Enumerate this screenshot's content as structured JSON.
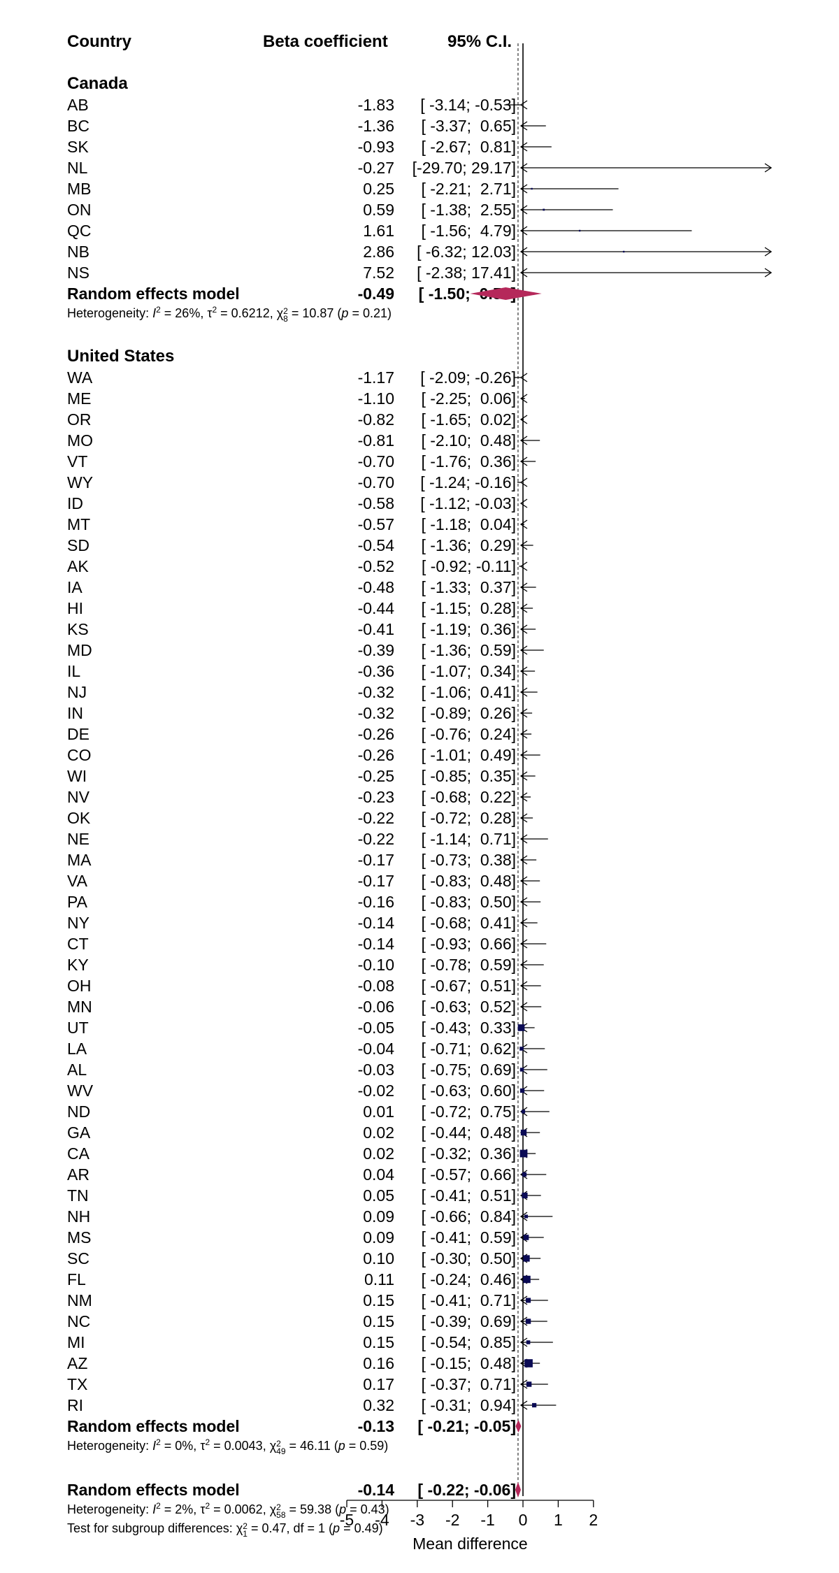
{
  "headers": {
    "country": "Country",
    "beta": "Beta coefficient",
    "ci": "95% C.I."
  },
  "colors": {
    "point": "#0b0b55",
    "diamond": "#b5285a",
    "line": "#000000"
  },
  "groups": [
    {
      "name": "Canada",
      "rows": [
        {
          "label": "AB",
          "est": "-1.83",
          "ci": "[ -3.14; -0.53]"
        },
        {
          "label": "BC",
          "est": "-1.36",
          "ci": "[ -3.37;  0.65]"
        },
        {
          "label": "SK",
          "est": "-0.93",
          "ci": "[ -2.67;  0.81]"
        },
        {
          "label": "NL",
          "est": "-0.27",
          "ci": "[-29.70; 29.17]"
        },
        {
          "label": "MB",
          "est": "0.25",
          "ci": "[ -2.21;  2.71]"
        },
        {
          "label": "ON",
          "est": "0.59",
          "ci": "[ -1.38;  2.55]"
        },
        {
          "label": "QC",
          "est": "1.61",
          "ci": "[ -1.56;  4.79]"
        },
        {
          "label": "NB",
          "est": "2.86",
          "ci": "[ -6.32; 12.03]"
        },
        {
          "label": "NS",
          "est": "7.52",
          "ci": "[ -2.38; 17.41]"
        }
      ],
      "model": {
        "label": "Random effects model",
        "est": "-0.49",
        "ci": "[ -1.50;  0.53]"
      },
      "het": {
        "prefix": "Heterogeneity: ",
        "i2sym": "I",
        "i2": " = 26%, ",
        "tau": "τ",
        "tau2": " = 0.6212, ",
        "chi": "χ",
        "chidf": "8",
        "chival": " = 10.87 (",
        "p": "p",
        "pval": " = 0.21)"
      }
    },
    {
      "name": "United States",
      "rows": [
        {
          "label": "WA",
          "est": "-1.17",
          "ci": "[ -2.09; -0.26]"
        },
        {
          "label": "ME",
          "est": "-1.10",
          "ci": "[ -2.25;  0.06]"
        },
        {
          "label": "OR",
          "est": "-0.82",
          "ci": "[ -1.65;  0.02]"
        },
        {
          "label": "MO",
          "est": "-0.81",
          "ci": "[ -2.10;  0.48]"
        },
        {
          "label": "VT",
          "est": "-0.70",
          "ci": "[ -1.76;  0.36]"
        },
        {
          "label": "WY",
          "est": "-0.70",
          "ci": "[ -1.24; -0.16]"
        },
        {
          "label": "ID",
          "est": "-0.58",
          "ci": "[ -1.12; -0.03]"
        },
        {
          "label": "MT",
          "est": "-0.57",
          "ci": "[ -1.18;  0.04]"
        },
        {
          "label": "SD",
          "est": "-0.54",
          "ci": "[ -1.36;  0.29]"
        },
        {
          "label": "AK",
          "est": "-0.52",
          "ci": "[ -0.92; -0.11]"
        },
        {
          "label": "IA",
          "est": "-0.48",
          "ci": "[ -1.33;  0.37]"
        },
        {
          "label": "HI",
          "est": "-0.44",
          "ci": "[ -1.15;  0.28]"
        },
        {
          "label": "KS",
          "est": "-0.41",
          "ci": "[ -1.19;  0.36]"
        },
        {
          "label": "MD",
          "est": "-0.39",
          "ci": "[ -1.36;  0.59]"
        },
        {
          "label": "IL",
          "est": "-0.36",
          "ci": "[ -1.07;  0.34]"
        },
        {
          "label": "NJ",
          "est": "-0.32",
          "ci": "[ -1.06;  0.41]"
        },
        {
          "label": "IN",
          "est": "-0.32",
          "ci": "[ -0.89;  0.26]"
        },
        {
          "label": "DE",
          "est": "-0.26",
          "ci": "[ -0.76;  0.24]"
        },
        {
          "label": "CO",
          "est": "-0.26",
          "ci": "[ -1.01;  0.49]"
        },
        {
          "label": "WI",
          "est": "-0.25",
          "ci": "[ -0.85;  0.35]"
        },
        {
          "label": "NV",
          "est": "-0.23",
          "ci": "[ -0.68;  0.22]"
        },
        {
          "label": "OK",
          "est": "-0.22",
          "ci": "[ -0.72;  0.28]"
        },
        {
          "label": "NE",
          "est": "-0.22",
          "ci": "[ -1.14;  0.71]"
        },
        {
          "label": "MA",
          "est": "-0.17",
          "ci": "[ -0.73;  0.38]"
        },
        {
          "label": "VA",
          "est": "-0.17",
          "ci": "[ -0.83;  0.48]"
        },
        {
          "label": "PA",
          "est": "-0.16",
          "ci": "[ -0.83;  0.50]"
        },
        {
          "label": "NY",
          "est": "-0.14",
          "ci": "[ -0.68;  0.41]"
        },
        {
          "label": "CT",
          "est": "-0.14",
          "ci": "[ -0.93;  0.66]"
        },
        {
          "label": "KY",
          "est": "-0.10",
          "ci": "[ -0.78;  0.59]"
        },
        {
          "label": "OH",
          "est": "-0.08",
          "ci": "[ -0.67;  0.51]"
        },
        {
          "label": "MN",
          "est": "-0.06",
          "ci": "[ -0.63;  0.52]"
        },
        {
          "label": "UT",
          "est": "-0.05",
          "ci": "[ -0.43;  0.33]"
        },
        {
          "label": "LA",
          "est": "-0.04",
          "ci": "[ -0.71;  0.62]"
        },
        {
          "label": "AL",
          "est": "-0.03",
          "ci": "[ -0.75;  0.69]"
        },
        {
          "label": "WV",
          "est": "-0.02",
          "ci": "[ -0.63;  0.60]"
        },
        {
          "label": "ND",
          "est": "0.01",
          "ci": "[ -0.72;  0.75]"
        },
        {
          "label": "GA",
          "est": "0.02",
          "ci": "[ -0.44;  0.48]"
        },
        {
          "label": "CA",
          "est": "0.02",
          "ci": "[ -0.32;  0.36]"
        },
        {
          "label": "AR",
          "est": "0.04",
          "ci": "[ -0.57;  0.66]"
        },
        {
          "label": "TN",
          "est": "0.05",
          "ci": "[ -0.41;  0.51]"
        },
        {
          "label": "NH",
          "est": "0.09",
          "ci": "[ -0.66;  0.84]"
        },
        {
          "label": "MS",
          "est": "0.09",
          "ci": "[ -0.41;  0.59]"
        },
        {
          "label": "SC",
          "est": "0.10",
          "ci": "[ -0.30;  0.50]"
        },
        {
          "label": "FL",
          "est": "0.11",
          "ci": "[ -0.24;  0.46]"
        },
        {
          "label": "NM",
          "est": "0.15",
          "ci": "[ -0.41;  0.71]"
        },
        {
          "label": "NC",
          "est": "0.15",
          "ci": "[ -0.39;  0.69]"
        },
        {
          "label": "MI",
          "est": "0.15",
          "ci": "[ -0.54;  0.85]"
        },
        {
          "label": "AZ",
          "est": "0.16",
          "ci": "[ -0.15;  0.48]"
        },
        {
          "label": "TX",
          "est": "0.17",
          "ci": "[ -0.37;  0.71]"
        },
        {
          "label": "RI",
          "est": "0.32",
          "ci": "[ -0.31;  0.94]"
        }
      ],
      "model": {
        "label": "Random effects model",
        "est": "-0.13",
        "ci": "[ -0.21; -0.05]"
      },
      "het": {
        "prefix": "Heterogeneity: ",
        "i2sym": "I",
        "i2": " = 0%, ",
        "tau": "τ",
        "tau2": " = 0.0043, ",
        "chi": "χ",
        "chidf": "49",
        "chival": " = 46.11 (",
        "p": "p",
        "pval": " = 0.59)"
      }
    }
  ],
  "overall": {
    "model": {
      "label": "Random effects model",
      "est": "-0.14",
      "ci": "[ -0.22; -0.06]"
    },
    "het": {
      "prefix": "Heterogeneity: ",
      "i2sym": "I",
      "i2": " = 2%, ",
      "tau": "τ",
      "tau2": " = 0.0062, ",
      "chi": "χ",
      "chidf": "58",
      "chival": " = 59.38 (",
      "p": "p",
      "pval": " = 0.43)"
    },
    "subgroup": {
      "prefix": "Test for subgroup differences: ",
      "chi": "χ",
      "chidf": "1",
      "chival": " = 0.47, df = 1 (",
      "p": "p",
      "pval": " = 0.49)"
    }
  },
  "chart_data": {
    "type": "forest",
    "xlabel": "Mean difference",
    "xlim": [
      -5,
      2
    ],
    "xticks": [
      "-5",
      "-4",
      "-3",
      "-2",
      "-1",
      "0",
      "1",
      "2"
    ],
    "reference_line": 0,
    "overall_dashed_line": -0.14,
    "points": [
      {
        "label": "AB",
        "est": -1.83,
        "lower": -3.14,
        "upper": -0.53,
        "weight": 0.6
      },
      {
        "label": "BC",
        "est": -1.36,
        "lower": -3.37,
        "upper": 0.65,
        "weight": 0.4
      },
      {
        "label": "SK",
        "est": -0.93,
        "lower": -2.67,
        "upper": 0.81,
        "weight": 0.4
      },
      {
        "label": "NL",
        "est": -0.27,
        "lower": -29.7,
        "upper": 29.17,
        "weight": 0.1
      },
      {
        "label": "MB",
        "est": 0.25,
        "lower": -2.21,
        "upper": 2.71,
        "weight": 0.3
      },
      {
        "label": "ON",
        "est": 0.59,
        "lower": -1.38,
        "upper": 2.55,
        "weight": 0.4
      },
      {
        "label": "QC",
        "est": 1.61,
        "lower": -1.56,
        "upper": 4.79,
        "weight": 0.3
      },
      {
        "label": "NB",
        "est": 2.86,
        "lower": -6.32,
        "upper": 12.03,
        "weight": 0.1
      },
      {
        "label": "NS",
        "est": 7.52,
        "lower": -2.38,
        "upper": 17.41,
        "weight": 0.1
      },
      {
        "label": "WA",
        "est": -1.17,
        "lower": -2.09,
        "upper": -0.26,
        "weight": 1.0
      },
      {
        "label": "ME",
        "est": -1.1,
        "lower": -2.25,
        "upper": 0.06,
        "weight": 0.6
      },
      {
        "label": "OR",
        "est": -0.82,
        "lower": -1.65,
        "upper": 0.02,
        "weight": 1.1
      },
      {
        "label": "MO",
        "est": -0.81,
        "lower": -2.1,
        "upper": 0.48,
        "weight": 0.5
      },
      {
        "label": "VT",
        "est": -0.7,
        "lower": -1.76,
        "upper": 0.36,
        "weight": 0.7
      },
      {
        "label": "WY",
        "est": -0.7,
        "lower": -1.24,
        "upper": -0.16,
        "weight": 2.6
      },
      {
        "label": "ID",
        "est": -0.58,
        "lower": -1.12,
        "upper": -0.03,
        "weight": 2.6
      },
      {
        "label": "MT",
        "est": -0.57,
        "lower": -1.18,
        "upper": 0.04,
        "weight": 2.1
      },
      {
        "label": "SD",
        "est": -0.54,
        "lower": -1.36,
        "upper": 0.29,
        "weight": 1.1
      },
      {
        "label": "AK",
        "est": -0.52,
        "lower": -0.92,
        "upper": -0.11,
        "weight": 4.6
      },
      {
        "label": "IA",
        "est": -0.48,
        "lower": -1.33,
        "upper": 0.37,
        "weight": 1.1
      },
      {
        "label": "HI",
        "est": -0.44,
        "lower": -1.15,
        "upper": 0.28,
        "weight": 1.5
      },
      {
        "label": "KS",
        "est": -0.41,
        "lower": -1.19,
        "upper": 0.36,
        "weight": 1.3
      },
      {
        "label": "MD",
        "est": -0.39,
        "lower": -1.36,
        "upper": 0.59,
        "weight": 0.8
      },
      {
        "label": "IL",
        "est": -0.36,
        "lower": -1.07,
        "upper": 0.34,
        "weight": 1.5
      },
      {
        "label": "NJ",
        "est": -0.32,
        "lower": -1.06,
        "upper": 0.41,
        "weight": 1.4
      },
      {
        "label": "IN",
        "est": -0.32,
        "lower": -0.89,
        "upper": 0.26,
        "weight": 2.3
      },
      {
        "label": "DE",
        "est": -0.26,
        "lower": -0.76,
        "upper": 0.24,
        "weight": 3.0
      },
      {
        "label": "CO",
        "est": -0.26,
        "lower": -1.01,
        "upper": 0.49,
        "weight": 1.4
      },
      {
        "label": "WI",
        "est": -0.25,
        "lower": -0.85,
        "upper": 0.35,
        "weight": 2.2
      },
      {
        "label": "NV",
        "est": -0.23,
        "lower": -0.68,
        "upper": 0.22,
        "weight": 3.8
      },
      {
        "label": "OK",
        "est": -0.22,
        "lower": -0.72,
        "upper": 0.28,
        "weight": 3.1
      },
      {
        "label": "NE",
        "est": -0.22,
        "lower": -1.14,
        "upper": 0.71,
        "weight": 0.9
      },
      {
        "label": "MA",
        "est": -0.17,
        "lower": -0.73,
        "upper": 0.38,
        "weight": 2.6
      },
      {
        "label": "VA",
        "est": -0.17,
        "lower": -0.83,
        "upper": 0.48,
        "weight": 1.9
      },
      {
        "label": "PA",
        "est": -0.16,
        "lower": -0.83,
        "upper": 0.5,
        "weight": 1.8
      },
      {
        "label": "NY",
        "est": -0.14,
        "lower": -0.68,
        "upper": 0.41,
        "weight": 2.6
      },
      {
        "label": "CT",
        "est": -0.14,
        "lower": -0.93,
        "upper": 0.66,
        "weight": 1.2
      },
      {
        "label": "KY",
        "est": -0.1,
        "lower": -0.78,
        "upper": 0.59,
        "weight": 1.6
      },
      {
        "label": "OH",
        "est": -0.08,
        "lower": -0.67,
        "upper": 0.51,
        "weight": 2.2
      },
      {
        "label": "MN",
        "est": -0.06,
        "lower": -0.63,
        "upper": 0.52,
        "weight": 2.3
      },
      {
        "label": "UT",
        "est": -0.05,
        "lower": -0.43,
        "upper": 0.33,
        "weight": 4.8
      },
      {
        "label": "LA",
        "est": -0.04,
        "lower": -0.71,
        "upper": 0.62,
        "weight": 1.6
      },
      {
        "label": "AL",
        "est": -0.03,
        "lower": -0.75,
        "upper": 0.69,
        "weight": 1.5
      },
      {
        "label": "WV",
        "est": -0.02,
        "lower": -0.63,
        "upper": 0.6,
        "weight": 2.0
      },
      {
        "label": "ND",
        "est": 0.01,
        "lower": -0.72,
        "upper": 0.75,
        "weight": 1.4
      },
      {
        "label": "GA",
        "est": 0.02,
        "lower": -0.44,
        "upper": 0.48,
        "weight": 3.6
      },
      {
        "label": "CA",
        "est": 0.02,
        "lower": -0.32,
        "upper": 0.36,
        "weight": 6.0
      },
      {
        "label": "AR",
        "est": 0.04,
        "lower": -0.57,
        "upper": 0.66,
        "weight": 2.0
      },
      {
        "label": "TN",
        "est": 0.05,
        "lower": -0.41,
        "upper": 0.51,
        "weight": 3.4
      },
      {
        "label": "NH",
        "est": 0.09,
        "lower": -0.66,
        "upper": 0.84,
        "weight": 1.3
      },
      {
        "label": "MS",
        "est": 0.09,
        "lower": -0.41,
        "upper": 0.59,
        "weight": 3.0
      },
      {
        "label": "SC",
        "est": 0.1,
        "lower": -0.3,
        "upper": 0.5,
        "weight": 4.4
      },
      {
        "label": "FL",
        "est": 0.11,
        "lower": -0.24,
        "upper": 0.46,
        "weight": 5.6
      },
      {
        "label": "NM",
        "est": 0.15,
        "lower": -0.41,
        "upper": 0.71,
        "weight": 2.6
      },
      {
        "label": "NC",
        "est": 0.15,
        "lower": -0.39,
        "upper": 0.69,
        "weight": 2.8
      },
      {
        "label": "MI",
        "est": 0.15,
        "lower": -0.54,
        "upper": 0.85,
        "weight": 1.6
      },
      {
        "label": "AZ",
        "est": 0.16,
        "lower": -0.15,
        "upper": 0.48,
        "weight": 7.0
      },
      {
        "label": "TX",
        "est": 0.17,
        "lower": -0.37,
        "upper": 0.71,
        "weight": 2.9
      },
      {
        "label": "RI",
        "est": 0.32,
        "lower": -0.31,
        "upper": 0.94,
        "weight": 2.0
      }
    ],
    "diamonds": [
      {
        "label": "Canada random effects model",
        "est": -0.49,
        "lower": -1.5,
        "upper": 0.53
      },
      {
        "label": "United States random effects model",
        "est": -0.13,
        "lower": -0.21,
        "upper": -0.05
      },
      {
        "label": "Overall random effects model",
        "est": -0.14,
        "lower": -0.22,
        "upper": -0.06
      }
    ]
  }
}
